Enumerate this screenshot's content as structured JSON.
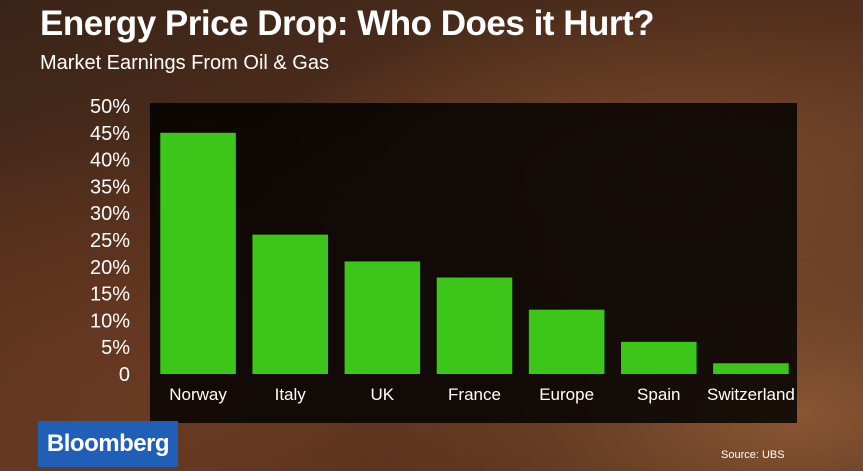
{
  "header": {
    "title": "Energy Price Drop: Who Does it Hurt?",
    "subtitle": "Market Earnings From Oil & Gas"
  },
  "branding": {
    "logo_text": "Bloomberg",
    "logo_color": "#1f5fb8"
  },
  "source": "Source: UBS",
  "colors": {
    "bar": "#3cc61a",
    "plot_background": "#000000"
  },
  "chart_data": {
    "type": "bar",
    "title": "Energy Price Drop: Who Does it Hurt?",
    "subtitle": "Market Earnings From Oil & Gas",
    "xlabel": "",
    "ylabel": "",
    "categories": [
      "Norway",
      "Italy",
      "UK",
      "France",
      "Europe",
      "Spain",
      "Switzerland"
    ],
    "values": [
      45,
      26,
      21,
      18,
      12,
      6,
      2
    ],
    "ylim": [
      0,
      50
    ],
    "y_ticks": [
      0,
      5,
      10,
      15,
      20,
      25,
      30,
      35,
      40,
      45,
      50
    ],
    "y_tick_labels": [
      "0",
      "5%",
      "10%",
      "15%",
      "20%",
      "25%",
      "30%",
      "35%",
      "40%",
      "45%",
      "50%"
    ],
    "grid": false,
    "legend": "none"
  }
}
